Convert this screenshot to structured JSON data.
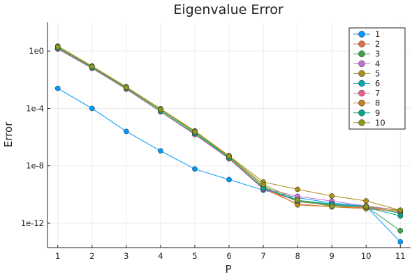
{
  "chart_data": {
    "type": "line",
    "title": "Eigenvalue Error",
    "xlabel": "P",
    "ylabel": "Error",
    "y_scale": "log10",
    "x_ticks": [
      1,
      2,
      3,
      4,
      5,
      6,
      7,
      8,
      9,
      10,
      11
    ],
    "x_tick_labels": [
      "1",
      "2",
      "3",
      "4",
      "5",
      "6",
      "7",
      "8",
      "9",
      "10",
      "11"
    ],
    "xlim": [
      0.7,
      11.3
    ],
    "ylim": [
      2e-14,
      100.0
    ],
    "y_ticks": [
      1,
      0.0001,
      1e-08,
      1e-12
    ],
    "y_tick_labels": [
      "1e0",
      "1e-4",
      "1e-8",
      "1e-12"
    ],
    "grid": true,
    "legend_position": "top-right",
    "x": [
      1,
      2,
      3,
      4,
      5,
      6,
      7,
      8,
      9,
      10,
      11
    ],
    "series": [
      {
        "name": "1",
        "color": "#009AFA",
        "values": [
          0.0025,
          0.0001,
          2.5e-06,
          1.1e-07,
          6e-09,
          1.1e-09,
          2e-10,
          6e-11,
          2.6e-11,
          1.5e-11,
          5e-14
        ]
      },
      {
        "name": "2",
        "color": "#E36F47",
        "values": [
          1.4,
          0.065,
          0.0023,
          6e-05,
          1.6e-06,
          3.2e-08,
          2.5e-10,
          2.2e-11,
          1.4e-11,
          1.2e-11,
          6.5e-12
        ]
      },
      {
        "name": "3",
        "color": "#3EA44E",
        "values": [
          1.9,
          0.08,
          0.0029,
          8e-05,
          2.2e-06,
          4.2e-08,
          3.8e-10,
          3.2e-11,
          1.8e-11,
          1.5e-11,
          3e-13
        ]
      },
      {
        "name": "4",
        "color": "#C371D2",
        "values": [
          1.5,
          0.066,
          0.0024,
          6.2e-05,
          1.7e-06,
          3.4e-08,
          2.7e-10,
          7.5e-11,
          3.5e-11,
          1.6e-11,
          8e-12
        ]
      },
      {
        "name": "5",
        "color": "#AC8E18",
        "values": [
          2.2,
          0.09,
          0.0032,
          9.5e-05,
          2.7e-06,
          5e-08,
          7.5e-10,
          2.3e-10,
          8e-11,
          3.6e-11,
          8e-12
        ]
      },
      {
        "name": "6",
        "color": "#00A9AD",
        "values": [
          1.45,
          0.064,
          0.0023,
          6.1e-05,
          1.6e-06,
          3.3e-08,
          2.6e-10,
          4e-11,
          2.2e-11,
          1.4e-11,
          5e-12
        ]
      },
      {
        "name": "7",
        "color": "#ED5E93",
        "values": [
          1.4,
          0.062,
          0.0022,
          5.9e-05,
          1.5e-06,
          3.1e-08,
          2.4e-10,
          3.5e-11,
          2e-11,
          1.3e-11,
          6e-12
        ]
      },
      {
        "name": "8",
        "color": "#C68225",
        "values": [
          2.1,
          0.085,
          0.003,
          8.8e-05,
          2.5e-06,
          4.8e-08,
          3.5e-10,
          1.9e-11,
          1.4e-11,
          1e-11,
          7e-12
        ]
      },
      {
        "name": "9",
        "color": "#00A98D",
        "values": [
          1.6,
          0.07,
          0.0025,
          6.5e-05,
          1.8e-06,
          3.6e-08,
          2.9e-10,
          3.6e-11,
          2.1e-11,
          1.3e-11,
          3.2e-12
        ]
      },
      {
        "name": "10",
        "color": "#8E971D",
        "values": [
          2.0,
          0.082,
          0.0029,
          8.5e-05,
          2.4e-06,
          4.6e-08,
          5e-10,
          4e-11,
          1.5e-11,
          1.4e-11,
          8e-12
        ]
      }
    ]
  }
}
